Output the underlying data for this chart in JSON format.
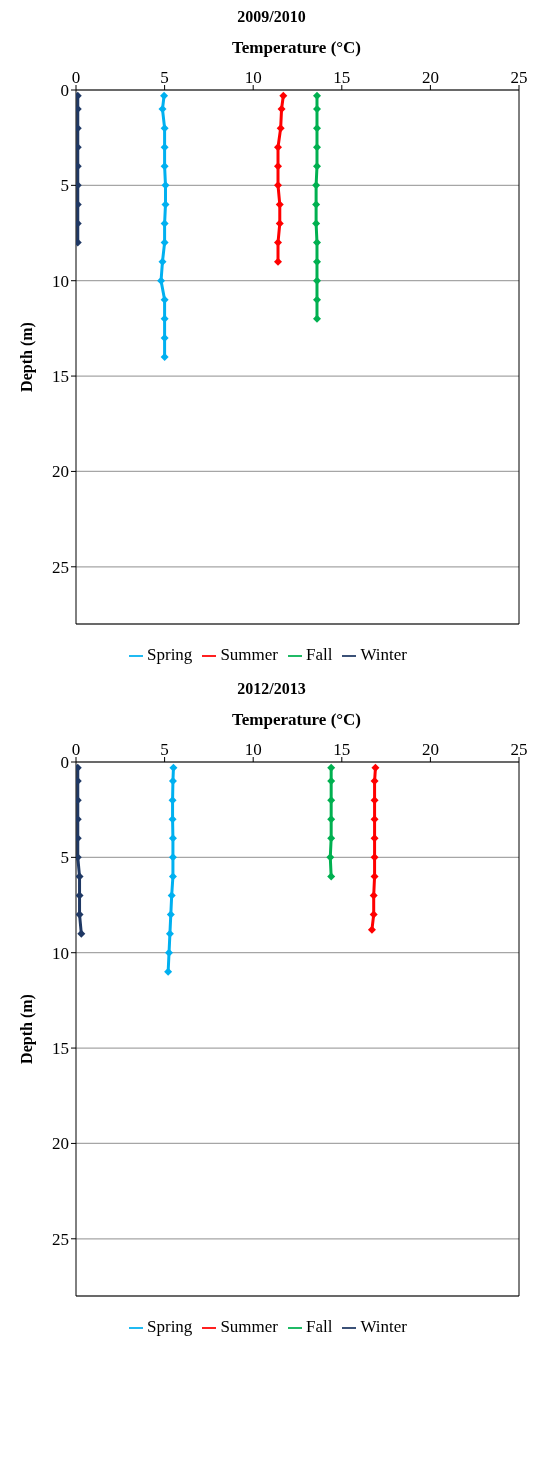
{
  "chart_data": [
    {
      "type": "line",
      "title": "2009/2010",
      "xlabel": "Temperature (°C)",
      "ylabel": "Depth (m)",
      "xlim": [
        0,
        25
      ],
      "xticks": [
        0,
        5,
        10,
        15,
        20,
        25
      ],
      "ylim": [
        28,
        0
      ],
      "yticks": [
        0,
        5,
        10,
        15,
        20,
        25
      ],
      "grid": "y",
      "legend": "bottom",
      "marker": "diamond",
      "series": [
        {
          "name": "Spring",
          "color": "#00b0f0",
          "x": [
            4.97,
            4.88,
            5.0,
            5.0,
            5.0,
            5.05,
            5.05,
            5.0,
            5.0,
            4.88,
            4.8,
            5.0,
            5.0,
            5.0,
            5.0
          ],
          "values": [
            0.3,
            1,
            2,
            3,
            4,
            5,
            6,
            7,
            8,
            9,
            10,
            11,
            12,
            13,
            14
          ]
        },
        {
          "name": "Summer",
          "color": "#ff0000",
          "x": [
            11.7,
            11.6,
            11.55,
            11.4,
            11.4,
            11.4,
            11.5,
            11.5,
            11.4,
            11.4
          ],
          "values": [
            0.3,
            1,
            2,
            3,
            4,
            5,
            6,
            7,
            8,
            9
          ]
        },
        {
          "name": "Fall",
          "color": "#00b050",
          "x": [
            13.6,
            13.6,
            13.6,
            13.6,
            13.6,
            13.55,
            13.55,
            13.55,
            13.6,
            13.6,
            13.6,
            13.6,
            13.6
          ],
          "values": [
            0.3,
            1,
            2,
            3,
            4,
            5,
            6,
            7,
            8,
            9,
            10,
            11,
            12
          ]
        },
        {
          "name": "Winter",
          "color": "#1f3864",
          "x": [
            0.1,
            0.1,
            0.1,
            0.1,
            0.1,
            0.1,
            0.1,
            0.1,
            0.1
          ],
          "values": [
            0.3,
            1,
            2,
            3,
            4,
            5,
            6,
            7,
            8
          ]
        }
      ]
    },
    {
      "type": "line",
      "title": "2012/2013",
      "xlabel": "Temperature (°C)",
      "ylabel": "Depth (m)",
      "xlim": [
        0,
        25
      ],
      "xticks": [
        0,
        5,
        10,
        15,
        20,
        25
      ],
      "ylim": [
        28,
        0
      ],
      "yticks": [
        0,
        5,
        10,
        15,
        20,
        25
      ],
      "grid": "y",
      "legend": "bottom",
      "marker": "diamond",
      "series": [
        {
          "name": "Spring",
          "color": "#00b0f0",
          "x": [
            5.5,
            5.47,
            5.45,
            5.45,
            5.47,
            5.47,
            5.47,
            5.4,
            5.35,
            5.3,
            5.25,
            5.2
          ],
          "values": [
            0.3,
            1,
            2,
            3,
            4,
            5,
            6,
            7,
            8,
            9,
            10,
            11
          ]
        },
        {
          "name": "Summer",
          "color": "#ff0000",
          "x": [
            16.9,
            16.85,
            16.85,
            16.85,
            16.85,
            16.85,
            16.85,
            16.8,
            16.8,
            16.7
          ],
          "values": [
            0.3,
            1,
            2,
            3,
            4,
            5,
            6,
            7,
            8,
            8.8
          ]
        },
        {
          "name": "Fall",
          "color": "#00b050",
          "x": [
            14.4,
            14.4,
            14.4,
            14.4,
            14.4,
            14.35,
            14.4
          ],
          "values": [
            0.3,
            1,
            2,
            3,
            4,
            5,
            6
          ]
        },
        {
          "name": "Winter",
          "color": "#1f3864",
          "x": [
            0.1,
            0.1,
            0.1,
            0.1,
            0.1,
            0.1,
            0.2,
            0.2,
            0.2,
            0.3
          ],
          "values": [
            0.3,
            1,
            2,
            3,
            4,
            5,
            6,
            7,
            8,
            9
          ]
        }
      ]
    }
  ]
}
